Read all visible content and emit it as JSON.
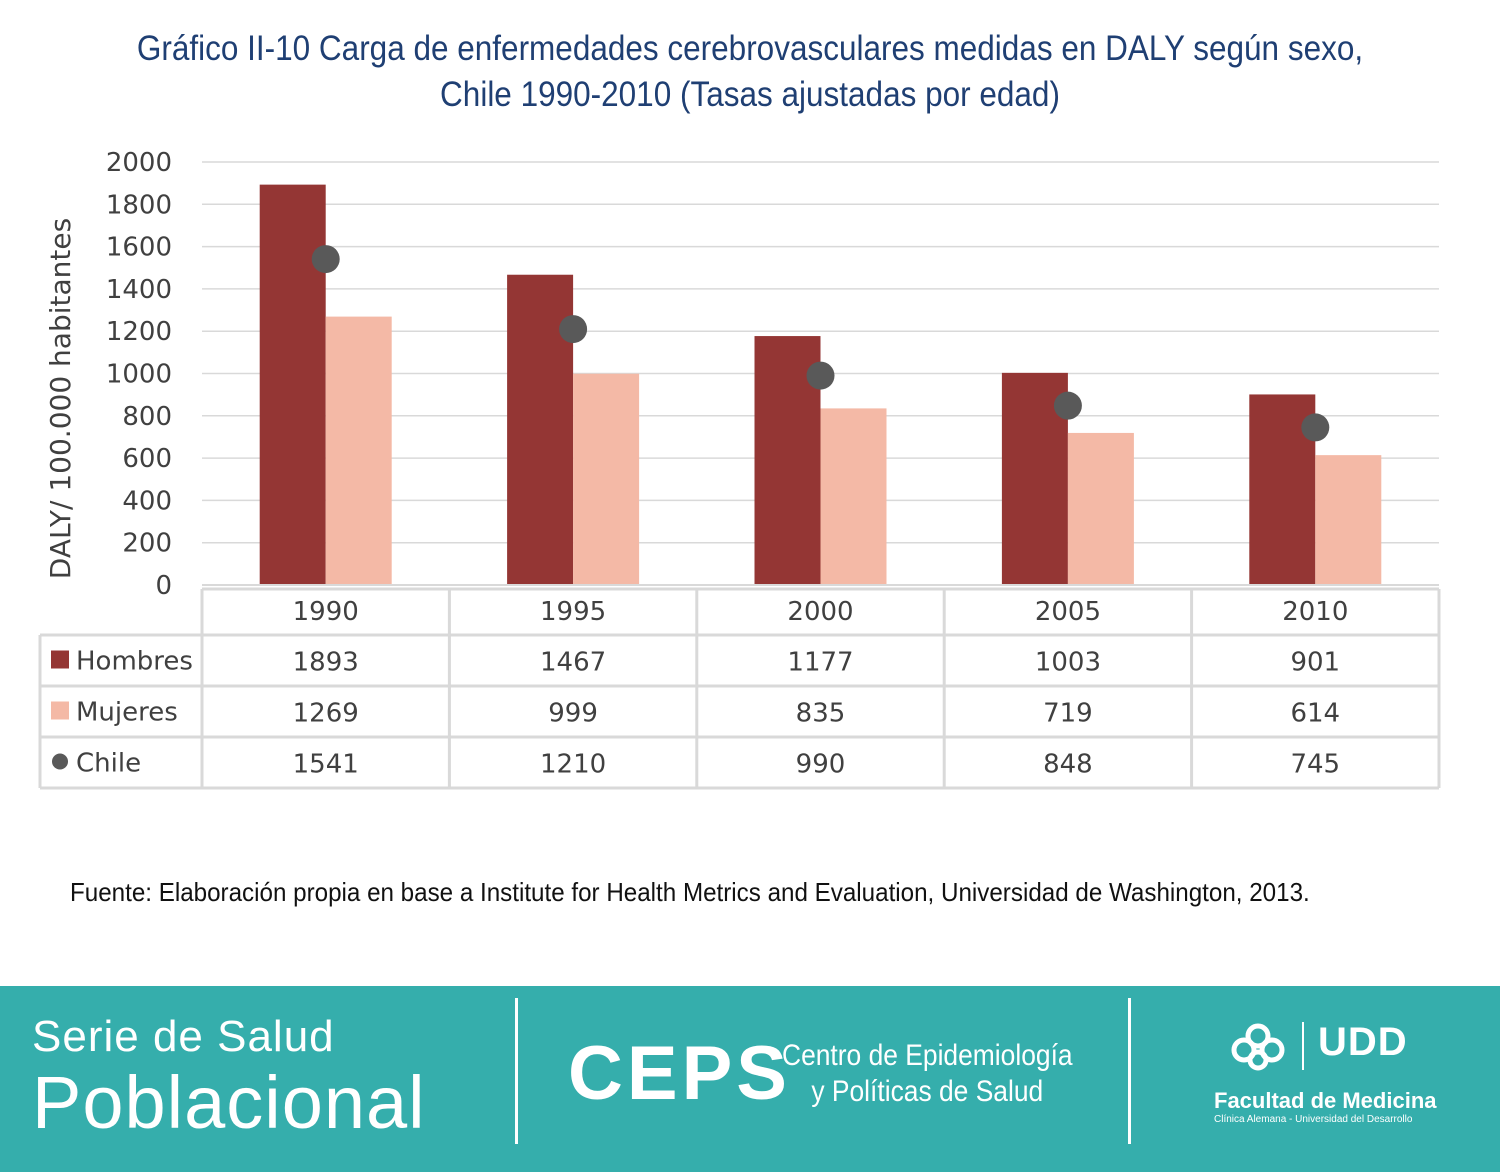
{
  "title_line1": "Gráfico II-10 Carga de enfermedades cerebrovasculares medidas en DALY según sexo,",
  "title_line2": "Chile 1990-2010 (Tasas ajustadas por edad)",
  "source": "Fuente: Elaboración propia en base a Institute for Health Metrics and Evaluation, Universidad de Washington, 2013.",
  "colors": {
    "title": "#1f3f73",
    "hombres": "#943634",
    "mujeres": "#f4b9a6",
    "chile": "#595959",
    "footer": "#35aeac"
  },
  "chart_data": {
    "type": "bar",
    "categories": [
      "1990",
      "1995",
      "2000",
      "2005",
      "2010"
    ],
    "series": [
      {
        "name": "Hombres",
        "kind": "bar",
        "color": "#943634",
        "values": [
          1893,
          1467,
          1177,
          1003,
          901
        ]
      },
      {
        "name": "Mujeres",
        "kind": "bar",
        "color": "#f4b9a6",
        "values": [
          1269,
          999,
          835,
          719,
          614
        ]
      },
      {
        "name": "Chile",
        "kind": "marker",
        "color": "#595959",
        "values": [
          1541,
          1210,
          990,
          848,
          745
        ]
      }
    ],
    "ylabel": "DALY/ 100.000 habitantes",
    "ylim": [
      0,
      2000
    ],
    "yticks": [
      "0",
      "200",
      "400",
      "600",
      "800",
      "1000",
      "1200",
      "1400",
      "1600",
      "1800",
      "2000"
    ],
    "grid": true,
    "data_table": true
  },
  "footer": {
    "serie_line1": "Serie de Salud",
    "serie_line2": "Poblacional",
    "ceps": "CEPS",
    "ceps_name_line1": "Centro de Epidemiología",
    "ceps_name_line2": "y Políticas de Salud",
    "udd": "UDD",
    "faculty": "Facultad de Medicina",
    "faculty_sub": "Clínica Alemana - Universidad del Desarrollo"
  }
}
